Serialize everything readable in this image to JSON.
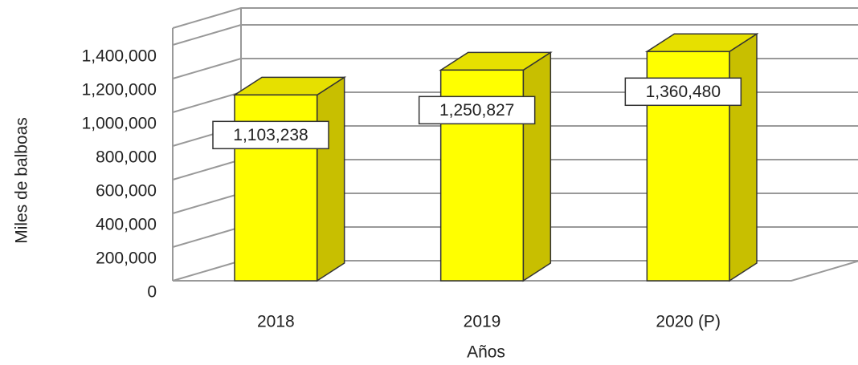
{
  "chart_data": {
    "type": "bar3d",
    "x_label": "Años",
    "y_label": "Miles de balboas",
    "categories": [
      "2018",
      "2019",
      "2020 (P)"
    ],
    "values": [
      1103238,
      1250827,
      1360480
    ],
    "value_labels": [
      "1,103,238",
      "1,250,827",
      "1,360,480"
    ],
    "color": "#ffff00",
    "ylim": [
      0,
      1500000
    ],
    "yticks": [
      0,
      {
        "value": 200000,
        "label": "200,000"
      },
      {
        "value": 400000,
        "label": "400,000"
      },
      {
        "value": 600000,
        "label": "600,000"
      },
      {
        "value": 800000,
        "label": "800,000"
      },
      {
        "value": 1000000,
        "label": "1,000,000"
      },
      {
        "value": 1200000,
        "label": "1,200,000"
      },
      {
        "value": 1400000,
        "label": "1,400,000"
      }
    ],
    "grid": true
  }
}
